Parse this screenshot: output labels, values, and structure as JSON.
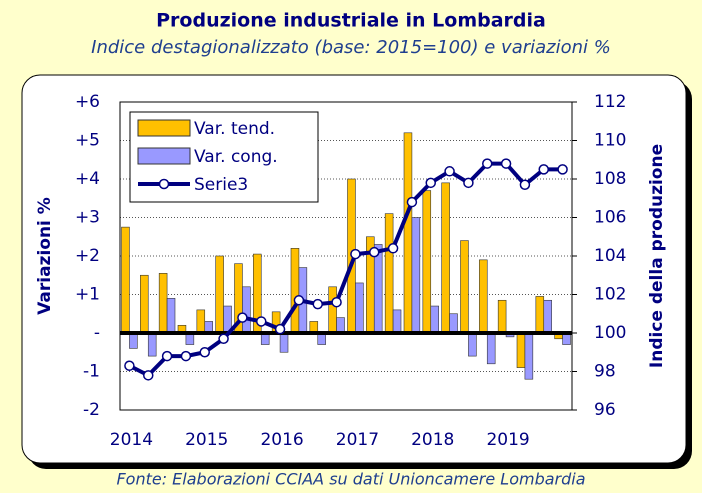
{
  "chart_data": {
    "type": "bar",
    "title": "Produzione industriale in Lombardia",
    "subtitle": "Indice destagionalizzato (base: 2015=100) e variazioni %",
    "source": "Fonte: Elaborazioni CCIAA su dati Unioncamere Lombardia",
    "ylabel": "Variazioni %",
    "y2label": "Indice della produzione",
    "categories": [
      "2014",
      null,
      null,
      null,
      "2015",
      null,
      null,
      null,
      "2016",
      null,
      null,
      null,
      "2017",
      null,
      null,
      null,
      "2018",
      null,
      null,
      null,
      "2019",
      null,
      null,
      null
    ],
    "series": [
      {
        "name": "Var. tend.",
        "type": "bar",
        "color": "#ffc000",
        "values": [
          2.75,
          1.5,
          1.55,
          0.2,
          0.6,
          2.0,
          1.8,
          2.05,
          0.55,
          2.2,
          0.3,
          1.2,
          4.0,
          2.5,
          3.1,
          5.2,
          3.7,
          3.9,
          2.4,
          1.9,
          0.85,
          -0.9,
          0.95,
          -0.15
        ]
      },
      {
        "name": "Var. cong.",
        "type": "bar",
        "color": "#9999ff",
        "values": [
          -0.4,
          -0.6,
          0.9,
          -0.3,
          0.3,
          0.7,
          1.2,
          -0.3,
          -0.5,
          1.7,
          -0.3,
          0.4,
          1.3,
          2.3,
          0.6,
          3.0,
          0.7,
          0.5,
          -0.6,
          -0.8,
          -0.1,
          -1.2,
          0.85,
          -0.3
        ]
      },
      {
        "name": "Serie3",
        "type": "line",
        "axis": "y2",
        "color": "#000080",
        "values": [
          98.3,
          97.8,
          98.8,
          98.8,
          99.0,
          99.7,
          100.8,
          100.6,
          100.2,
          101.7,
          101.5,
          101.6,
          104.1,
          104.2,
          104.4,
          106.8,
          107.8,
          108.4,
          107.8,
          108.8,
          108.8,
          107.7,
          108.5,
          108.5
        ]
      }
    ],
    "ylim": [
      -2,
      6
    ],
    "yticks": [
      -2,
      -1,
      {
        "value": 0,
        "label": "-"
      },
      {
        "value": 1,
        "label": "+1"
      },
      {
        "value": 2,
        "label": "+2"
      },
      {
        "value": 3,
        "label": "+3"
      },
      {
        "value": 4,
        "label": "+4"
      },
      {
        "value": 5,
        "label": "+5"
      },
      {
        "value": 6,
        "label": "+6"
      }
    ],
    "y2lim": [
      96,
      112
    ],
    "y2ticks": [
      96,
      98,
      100,
      102,
      104,
      106,
      108,
      110,
      112
    ],
    "grid": true,
    "legend": "upper left"
  }
}
